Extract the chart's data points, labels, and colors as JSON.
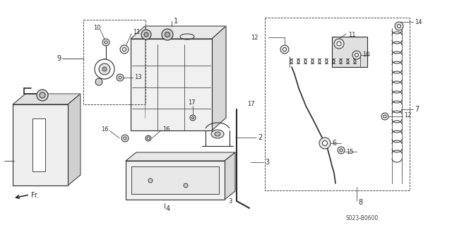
{
  "bg_color": "#ffffff",
  "line_color": "#2a2a2a",
  "diagram_code": "S023-B0600",
  "figsize": [
    6.4,
    3.19
  ],
  "dpi": 100
}
